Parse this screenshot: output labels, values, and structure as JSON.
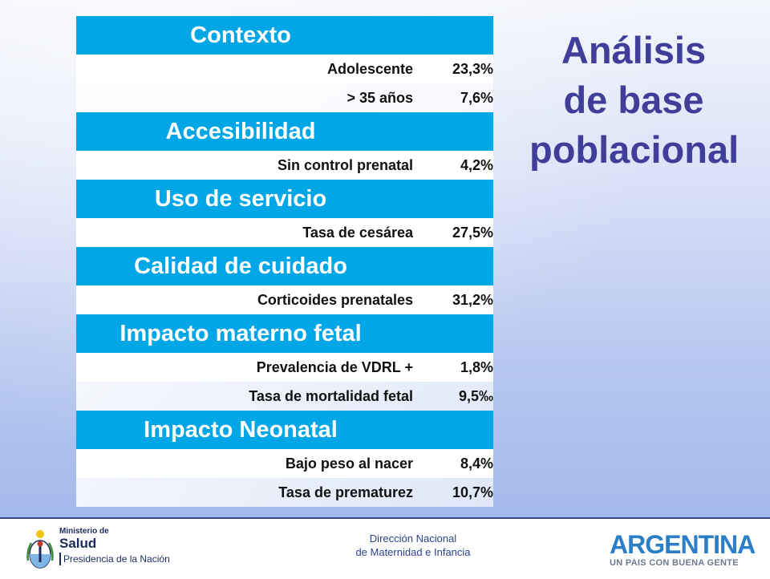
{
  "title_lines": [
    "Análisis",
    "de base",
    "poblacional"
  ],
  "sections": [
    {
      "header": "Contexto",
      "rows": [
        {
          "label": "Adolescente",
          "value": "23,3%"
        },
        {
          "label": "> 35 años",
          "value": "7,6%"
        }
      ]
    },
    {
      "header": "Accesibilidad",
      "rows": [
        {
          "label": "Sin control prenatal",
          "value": "4,2%"
        }
      ]
    },
    {
      "header": "Uso de servicio",
      "rows": [
        {
          "label": "Tasa de cesárea",
          "value": "27,5%"
        }
      ]
    },
    {
      "header": "Calidad de cuidado",
      "rows": [
        {
          "label": "Corticoides prenatales",
          "value": "31,2%"
        }
      ]
    },
    {
      "header": "Impacto materno fetal",
      "rows": [
        {
          "label": "Prevalencia de VDRL +",
          "value": "1,8%"
        },
        {
          "label": "Tasa de mortalidad fetal",
          "value": "9,5‰"
        }
      ]
    },
    {
      "header": "Impacto Neonatal",
      "rows": [
        {
          "label": "Bajo peso al nacer",
          "value": "8,4%"
        },
        {
          "label": "Tasa de prematurez",
          "value": "10,7%"
        }
      ]
    }
  ],
  "footer": {
    "ministry_line1": "Ministerio de",
    "ministry_line2": "Salud",
    "ministry_line3": "Presidencia de la Nación",
    "direccion_line1": "Dirección Nacional",
    "direccion_line2": "de Maternidad e Infancia",
    "argentina_word": "ARGENTINA",
    "argentina_tag": "UN PAIS CON BUENA GENTE",
    "emblem_icon": "argentina-coat-of-arms-icon"
  },
  "colors": {
    "header_blue": "#00a6e6",
    "title_purple": "#3f3f9a",
    "argentina_blue": "#2c7fc6"
  }
}
